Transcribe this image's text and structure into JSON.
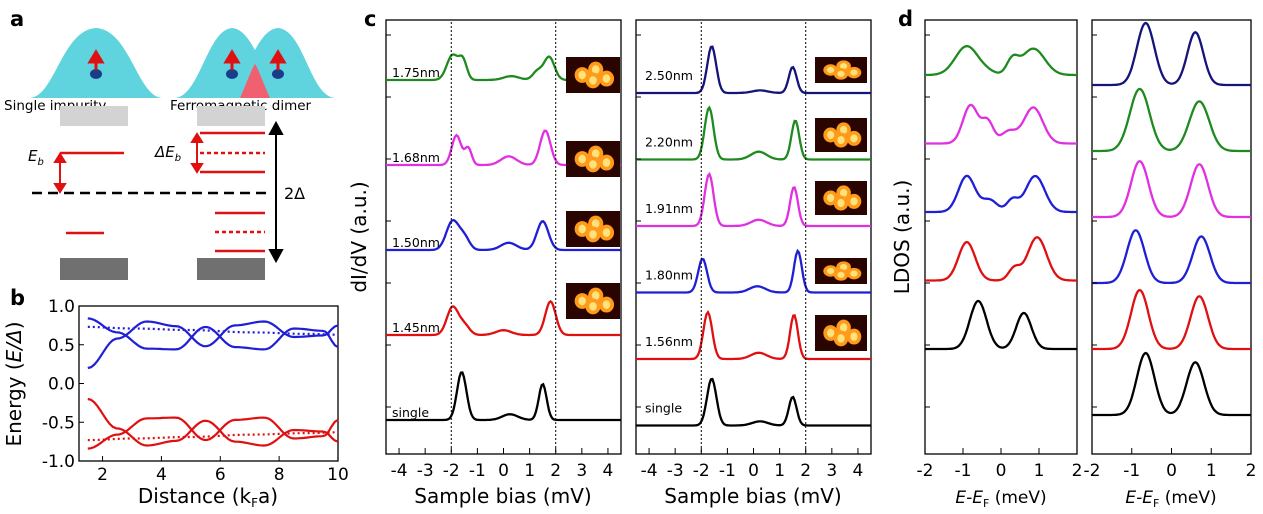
{
  "panels": {
    "a": {
      "letter": "a",
      "label_single": "Single impurity",
      "label_dimer": "Ferromagnetic dimer",
      "eb_label": "E",
      "eb_sub": "b",
      "deb_label": "ΔE",
      "deb_sub": "b",
      "gap_label": "2Δ"
    },
    "b": {
      "letter": "b",
      "xlabel_pre": "Distance (k",
      "xlabel_sub": "F",
      "xlabel_post": "a)",
      "ylabel_pre": "Energy (",
      "ylabel_it": "E/Δ",
      "ylabel_post": ")",
      "xticks": [
        "2",
        "4",
        "6",
        "8",
        "10"
      ],
      "yticks": [
        "1.0",
        "0.5",
        "0.0",
        "-0.5",
        "-1.0"
      ]
    },
    "c": {
      "letter": "c",
      "ylabel": "dI/dV (a.u.)",
      "xlabel": "Sample bias (mV)",
      "xticks": [
        "-4",
        "-3",
        "-2",
        "-1",
        "0",
        "1",
        "2",
        "3",
        "4"
      ],
      "left_labels": [
        "1.75nm",
        "1.68nm",
        "1.50nm",
        "1.45nm",
        "single"
      ],
      "right_labels": [
        "2.50nm",
        "2.20nm",
        "1.91nm",
        "1.80nm",
        "1.56nm",
        "single"
      ]
    },
    "d": {
      "letter": "d",
      "ylabel": "LDOS (a.u.)",
      "xlabel_pre": "E",
      "xlabel_mid": "-E",
      "xlabel_sub": "F",
      "xlabel_post": " (meV)",
      "xticks": [
        "-2",
        "-1",
        "0",
        "1",
        "2"
      ]
    }
  },
  "chart_data": [
    {
      "type": "line",
      "panel": "b",
      "xlabel": "Distance (kFa)",
      "ylabel": "Energy (E/Δ)",
      "xlim": [
        1.2,
        10
      ],
      "ylim": [
        -1.0,
        1.0
      ],
      "series": [
        {
          "color": "#1f1fd6",
          "style": "solid",
          "x": [
            1.5,
            2.5,
            3.5,
            4.5,
            5.5,
            6.5,
            7.5,
            8.5,
            9.5,
            10
          ],
          "y": [
            0.2,
            0.58,
            0.8,
            0.74,
            0.48,
            0.75,
            0.8,
            0.6,
            0.62,
            0.75
          ]
        },
        {
          "color": "#1f1fd6",
          "style": "solid",
          "x": [
            1.5,
            2.5,
            3.5,
            4.5,
            5.5,
            6.5,
            7.5,
            8.5,
            9.5,
            10
          ],
          "y": [
            0.84,
            0.66,
            0.45,
            0.44,
            0.73,
            0.47,
            0.44,
            0.71,
            0.68,
            0.47
          ]
        },
        {
          "color": "#1f1fd6",
          "style": "dotted",
          "x": [
            1.5,
            3,
            5,
            7,
            9,
            10
          ],
          "y": [
            0.73,
            0.71,
            0.69,
            0.66,
            0.64,
            0.63
          ]
        },
        {
          "color": "#e01010",
          "style": "solid",
          "x": [
            1.5,
            2.5,
            3.5,
            4.5,
            5.5,
            6.5,
            7.5,
            8.5,
            9.5,
            10
          ],
          "y": [
            -0.2,
            -0.58,
            -0.8,
            -0.74,
            -0.48,
            -0.75,
            -0.8,
            -0.6,
            -0.62,
            -0.75
          ]
        },
        {
          "color": "#e01010",
          "style": "solid",
          "x": [
            1.5,
            2.5,
            3.5,
            4.5,
            5.5,
            6.5,
            7.5,
            8.5,
            9.5,
            10
          ],
          "y": [
            -0.84,
            -0.66,
            -0.45,
            -0.44,
            -0.73,
            -0.47,
            -0.44,
            -0.71,
            -0.68,
            -0.47
          ]
        },
        {
          "color": "#e01010",
          "style": "dotted",
          "x": [
            1.5,
            3,
            5,
            7,
            9,
            10
          ],
          "y": [
            -0.73,
            -0.71,
            -0.69,
            -0.66,
            -0.64,
            -0.63
          ]
        }
      ]
    },
    {
      "type": "line",
      "panel": "c-left",
      "xlabel": "Sample bias (mV)",
      "ylabel": "dI/dV (a.u.)",
      "xlim": [
        -4.5,
        4.5
      ],
      "series": [
        {
          "name": "1.75nm",
          "color": "#1f8a1f",
          "peaks": [
            [
              -1.95,
              0.52,
              0.22
            ],
            [
              -1.55,
              0.38,
              0.15
            ],
            [
              0.3,
              0.08,
              0.3
            ],
            [
              1.3,
              0.18,
              0.18
            ],
            [
              1.75,
              0.48,
              0.2
            ]
          ]
        },
        {
          "name": "1.68nm",
          "color": "#e030e0",
          "peaks": [
            [
              -1.8,
              0.62,
              0.18
            ],
            [
              -1.35,
              0.35,
              0.13
            ],
            [
              0.2,
              0.18,
              0.3
            ],
            [
              1.6,
              0.72,
              0.2
            ]
          ]
        },
        {
          "name": "1.50nm",
          "color": "#1f1fd6",
          "peaks": [
            [
              -1.95,
              0.6,
              0.24
            ],
            [
              -1.5,
              0.25,
              0.2
            ],
            [
              0.2,
              0.15,
              0.3
            ],
            [
              1.5,
              0.6,
              0.22
            ]
          ]
        },
        {
          "name": "1.45nm",
          "color": "#e01010",
          "peaks": [
            [
              -1.95,
              0.58,
              0.22
            ],
            [
              -1.5,
              0.2,
              0.2
            ],
            [
              0.0,
              0.1,
              0.3
            ],
            [
              1.8,
              0.7,
              0.2
            ]
          ]
        },
        {
          "name": "single",
          "color": "#000000",
          "peaks": [
            [
              -1.6,
              1.0,
              0.18
            ],
            [
              0.25,
              0.12,
              0.3
            ],
            [
              1.5,
              0.75,
              0.15
            ]
          ]
        }
      ]
    },
    {
      "type": "line",
      "panel": "c-right",
      "xlabel": "Sample bias (mV)",
      "xlim": [
        -4.5,
        4.5
      ],
      "series": [
        {
          "name": "2.50nm",
          "color": "#14147a",
          "peaks": [
            [
              -1.6,
              0.9,
              0.17
            ],
            [
              0.25,
              0.05,
              0.3
            ],
            [
              1.5,
              0.5,
              0.15
            ]
          ]
        },
        {
          "name": "2.20nm",
          "color": "#1f8a1f",
          "peaks": [
            [
              -1.7,
              1.0,
              0.17
            ],
            [
              0.2,
              0.15,
              0.3
            ],
            [
              1.6,
              0.75,
              0.15
            ]
          ]
        },
        {
          "name": "1.91nm",
          "color": "#e030e0",
          "peaks": [
            [
              -1.7,
              1.0,
              0.17
            ],
            [
              0.2,
              0.12,
              0.3
            ],
            [
              1.55,
              0.75,
              0.15
            ]
          ]
        },
        {
          "name": "1.80nm",
          "color": "#1f1fd6",
          "peaks": [
            [
              -1.95,
              0.65,
              0.17
            ],
            [
              0.15,
              0.12,
              0.3
            ],
            [
              1.7,
              0.8,
              0.15
            ]
          ]
        },
        {
          "name": "1.56nm",
          "color": "#e01010",
          "peaks": [
            [
              -1.75,
              0.9,
              0.17
            ],
            [
              0.2,
              0.12,
              0.3
            ],
            [
              1.55,
              0.85,
              0.15
            ]
          ]
        },
        {
          "name": "single",
          "color": "#000000",
          "peaks": [
            [
              -1.6,
              0.9,
              0.18
            ],
            [
              0.25,
              0.08,
              0.3
            ],
            [
              1.5,
              0.55,
              0.15
            ]
          ]
        }
      ]
    },
    {
      "type": "line",
      "panel": "d-left",
      "xlabel": "E-EF (meV)",
      "ylabel": "LDOS (a.u.)",
      "xlim": [
        -2,
        2
      ],
      "series": [
        {
          "color": "#1f8a1f",
          "peaks": [
            [
              -0.9,
              0.6,
              0.3
            ],
            [
              -0.35,
              0.05,
              0.2
            ],
            [
              0.3,
              0.3,
              0.15
            ],
            [
              0.85,
              0.55,
              0.3
            ]
          ]
        },
        {
          "color": "#e030e0",
          "peaks": [
            [
              -0.8,
              0.8,
              0.2
            ],
            [
              -0.35,
              0.45,
              0.15
            ],
            [
              0.2,
              0.25,
              0.2
            ],
            [
              0.85,
              0.75,
              0.25
            ]
          ]
        },
        {
          "color": "#1f1fd6",
          "peaks": [
            [
              -0.9,
              0.75,
              0.22
            ],
            [
              -0.3,
              0.25,
              0.2
            ],
            [
              0.3,
              0.25,
              0.15
            ],
            [
              0.9,
              0.75,
              0.25
            ]
          ]
        },
        {
          "color": "#e01010",
          "peaks": [
            [
              -0.9,
              0.8,
              0.22
            ],
            [
              0.35,
              0.25,
              0.15
            ],
            [
              0.95,
              0.9,
              0.25
            ]
          ]
        },
        {
          "color": "#000000",
          "peaks": [
            [
              -0.6,
              1.0,
              0.22
            ],
            [
              0.6,
              0.75,
              0.2
            ]
          ]
        }
      ]
    },
    {
      "type": "line",
      "panel": "d-right",
      "xlabel": "E-EF (meV)",
      "xlim": [
        -2,
        2
      ],
      "series": [
        {
          "color": "#14147a",
          "peaks": [
            [
              -0.65,
              1.0,
              0.22
            ],
            [
              0.6,
              0.85,
              0.2
            ]
          ]
        },
        {
          "color": "#1f8a1f",
          "peaks": [
            [
              -0.8,
              1.0,
              0.25
            ],
            [
              0.7,
              0.8,
              0.25
            ]
          ]
        },
        {
          "color": "#e030e0",
          "peaks": [
            [
              -0.8,
              0.9,
              0.22
            ],
            [
              0.7,
              0.85,
              0.22
            ]
          ]
        },
        {
          "color": "#1f1fd6",
          "peaks": [
            [
              -0.9,
              0.85,
              0.22
            ],
            [
              0.75,
              0.75,
              0.22
            ]
          ]
        },
        {
          "color": "#e01010",
          "peaks": [
            [
              -0.8,
              0.95,
              0.22
            ],
            [
              0.7,
              0.85,
              0.22
            ]
          ]
        },
        {
          "color": "#000000",
          "peaks": [
            [
              -0.65,
              1.0,
              0.22
            ],
            [
              0.6,
              0.85,
              0.22
            ]
          ]
        }
      ]
    }
  ]
}
